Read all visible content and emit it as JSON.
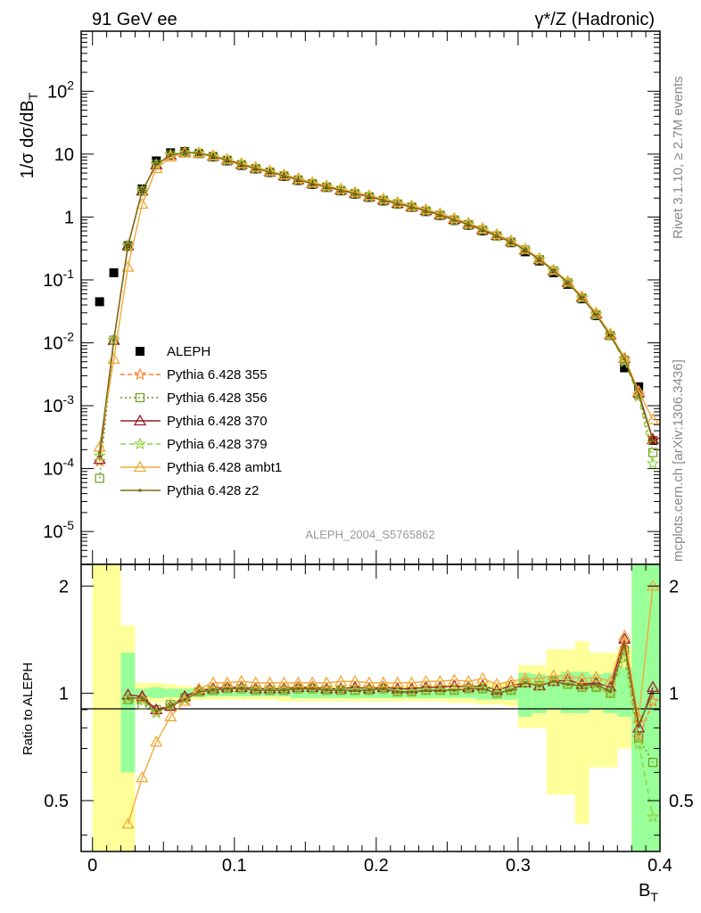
{
  "header": {
    "left": "91 GeV ee",
    "right": "γ*/Z (Hadronic)"
  },
  "side": {
    "rivet": "Rivet 3.1.10, ≥ 2.7M events",
    "mcplots": "mcplots.cern.ch [arXiv:1306.3436]"
  },
  "analysis_tag": "ALEPH_2004_S5765862",
  "chart_data": [
    {
      "type": "scatter",
      "panel": "main",
      "ylabel": "1/σ  dσ/dB_T",
      "yscale": "log",
      "ylim": [
        3e-06,
        900
      ],
      "xlim": [
        -0.008,
        0.4
      ],
      "yticks": [
        "10^-5",
        "10^-4",
        "10^-3",
        "10^-2",
        "10^-1",
        "1",
        "10",
        "10^2"
      ],
      "x": [
        0.005,
        0.015,
        0.025,
        0.035,
        0.045,
        0.055,
        0.065,
        0.075,
        0.085,
        0.095,
        0.105,
        0.115,
        0.125,
        0.135,
        0.145,
        0.155,
        0.165,
        0.175,
        0.185,
        0.195,
        0.205,
        0.215,
        0.225,
        0.235,
        0.245,
        0.255,
        0.265,
        0.275,
        0.285,
        0.295,
        0.305,
        0.315,
        0.325,
        0.335,
        0.345,
        0.355,
        0.365,
        0.375,
        0.385,
        0.395
      ],
      "series": [
        {
          "name": "ALEPH",
          "color": "#000000",
          "marker": "square",
          "values": [
            0.045,
            0.13,
            0.35,
            2.8,
            7.8,
            10.5,
            11,
            10.2,
            9.0,
            7.8,
            6.6,
            5.8,
            5.1,
            4.4,
            3.8,
            3.3,
            2.95,
            2.6,
            2.3,
            2.05,
            1.8,
            1.6,
            1.42,
            1.22,
            1.05,
            0.88,
            0.74,
            0.6,
            0.5,
            0.39,
            0.28,
            0.2,
            0.13,
            0.085,
            0.05,
            0.027,
            0.013,
            0.004,
            0.002,
            0.00028
          ]
        },
        {
          "name": "Pythia 6.428 355",
          "color": "#ff7f2a",
          "marker": "star",
          "dash": "5,3",
          "values": [
            0.00013,
            0.011,
            0.35,
            2.6,
            6.8,
            9.6,
            10.6,
            10.3,
            9.2,
            8.0,
            6.8,
            5.9,
            5.2,
            4.5,
            3.9,
            3.4,
            3.0,
            2.65,
            2.35,
            2.1,
            1.85,
            1.62,
            1.44,
            1.25,
            1.07,
            0.9,
            0.76,
            0.62,
            0.5,
            0.4,
            0.3,
            0.21,
            0.14,
            0.09,
            0.052,
            0.028,
            0.013,
            0.0055,
            0.0015,
            0.0003
          ]
        },
        {
          "name": "Pythia 6.428 356",
          "color": "#6e9c1c",
          "marker": "open-square",
          "dash": "2,3",
          "values": [
            7e-05,
            0.011,
            0.34,
            2.6,
            6.9,
            9.7,
            10.7,
            10.3,
            9.2,
            8.0,
            6.8,
            5.9,
            5.2,
            4.5,
            3.9,
            3.4,
            3.0,
            2.65,
            2.35,
            2.1,
            1.85,
            1.62,
            1.44,
            1.25,
            1.07,
            0.9,
            0.76,
            0.62,
            0.5,
            0.4,
            0.3,
            0.21,
            0.14,
            0.09,
            0.052,
            0.028,
            0.013,
            0.0053,
            0.0015,
            0.00018
          ]
        },
        {
          "name": "Pythia 6.428 370",
          "color": "#9b1c2c",
          "marker": "open-triangle",
          "dash": "",
          "values": [
            0.00014,
            0.011,
            0.35,
            2.6,
            6.8,
            9.6,
            10.7,
            10.4,
            9.3,
            8.1,
            6.9,
            5.95,
            5.25,
            4.55,
            3.95,
            3.45,
            3.05,
            2.7,
            2.4,
            2.12,
            1.88,
            1.65,
            1.46,
            1.27,
            1.09,
            0.92,
            0.77,
            0.63,
            0.51,
            0.41,
            0.3,
            0.21,
            0.14,
            0.092,
            0.053,
            0.029,
            0.0135,
            0.0057,
            0.0016,
            0.00029
          ]
        },
        {
          "name": "Pythia 6.428 379",
          "color": "#8fd13f",
          "marker": "star",
          "dash": "6,4",
          "values": [
            0.00016,
            0.011,
            0.35,
            2.6,
            6.8,
            9.7,
            10.6,
            10.3,
            9.2,
            8.0,
            6.8,
            5.9,
            5.2,
            4.5,
            3.9,
            3.4,
            3.0,
            2.65,
            2.35,
            2.1,
            1.85,
            1.62,
            1.44,
            1.25,
            1.07,
            0.9,
            0.76,
            0.62,
            0.5,
            0.4,
            0.3,
            0.21,
            0.14,
            0.09,
            0.052,
            0.028,
            0.013,
            0.005,
            0.0014,
            0.00012
          ]
        },
        {
          "name": "Pythia 6.428 ambt1",
          "color": "#f2a93b",
          "marker": "open-triangle",
          "dash": "",
          "values": [
            0.00022,
            0.0055,
            0.16,
            1.6,
            5.9,
            9.0,
            10.4,
            10.5,
            9.5,
            8.3,
            7.1,
            6.2,
            5.4,
            4.7,
            4.1,
            3.55,
            3.15,
            2.8,
            2.48,
            2.2,
            1.95,
            1.72,
            1.52,
            1.32,
            1.14,
            0.96,
            0.8,
            0.66,
            0.53,
            0.42,
            0.31,
            0.22,
            0.145,
            0.095,
            0.055,
            0.03,
            0.014,
            0.0058,
            0.0017,
            0.0006
          ]
        },
        {
          "name": "Pythia 6.428 z2",
          "color": "#7a6c14",
          "marker": "dot",
          "dash": "",
          "values": [
            0.00018,
            0.011,
            0.35,
            2.6,
            6.8,
            9.6,
            10.6,
            10.3,
            9.2,
            8.0,
            6.8,
            5.9,
            5.2,
            4.5,
            3.9,
            3.4,
            3.0,
            2.65,
            2.35,
            2.1,
            1.85,
            1.62,
            1.44,
            1.25,
            1.07,
            0.9,
            0.76,
            0.62,
            0.5,
            0.4,
            0.3,
            0.21,
            0.14,
            0.09,
            0.052,
            0.028,
            0.013,
            0.0055,
            0.0015,
            0.00028
          ]
        }
      ]
    },
    {
      "type": "line",
      "panel": "ratio",
      "xlabel": "B_T",
      "ylabel": "Ratio to ALEPH",
      "yscale": "log",
      "ylim": [
        0.36,
        2.3
      ],
      "xlim": [
        -0.008,
        0.4
      ],
      "xticks": [
        "0",
        "0.1",
        "0.2",
        "0.3",
        "0.4"
      ],
      "yticks": [
        "0.5",
        "1",
        "2"
      ],
      "x": [
        0.005,
        0.015,
        0.025,
        0.035,
        0.045,
        0.055,
        0.065,
        0.075,
        0.085,
        0.095,
        0.105,
        0.115,
        0.125,
        0.135,
        0.145,
        0.155,
        0.165,
        0.175,
        0.185,
        0.195,
        0.205,
        0.215,
        0.225,
        0.235,
        0.245,
        0.255,
        0.265,
        0.275,
        0.285,
        0.295,
        0.305,
        0.315,
        0.325,
        0.335,
        0.345,
        0.355,
        0.365,
        0.375,
        0.385,
        0.395
      ],
      "band_inner": [
        2.05,
        2.0,
        0.6,
        0.98,
        0.97,
        0.975,
        0.975,
        0.975,
        0.98,
        0.98,
        0.98,
        0.98,
        0.98,
        0.98,
        0.97,
        0.97,
        0.97,
        0.97,
        0.97,
        0.97,
        0.97,
        0.97,
        0.97,
        0.97,
        0.97,
        0.97,
        0.97,
        0.96,
        0.96,
        0.96,
        0.86,
        0.88,
        0.9,
        0.88,
        0.88,
        0.9,
        0.88,
        0.86,
        0.36,
        0.36
      ],
      "band_inner_hi": [
        2.05,
        2.0,
        1.3,
        1.03,
        1.04,
        1.03,
        1.03,
        1.03,
        1.02,
        1.02,
        1.02,
        1.02,
        1.02,
        1.02,
        1.03,
        1.03,
        1.03,
        1.03,
        1.03,
        1.03,
        1.03,
        1.03,
        1.03,
        1.03,
        1.03,
        1.03,
        1.03,
        1.04,
        1.04,
        1.04,
        1.14,
        1.13,
        1.12,
        1.15,
        1.15,
        1.13,
        1.14,
        1.18,
        2.3,
        2.3
      ],
      "band_outer_lo": [
        0.36,
        0.36,
        0.36,
        0.93,
        0.94,
        0.95,
        0.96,
        0.96,
        0.96,
        0.96,
        0.96,
        0.96,
        0.96,
        0.95,
        0.95,
        0.95,
        0.95,
        0.95,
        0.95,
        0.95,
        0.95,
        0.95,
        0.95,
        0.95,
        0.95,
        0.94,
        0.94,
        0.93,
        0.93,
        0.92,
        0.8,
        0.8,
        0.52,
        0.52,
        0.43,
        0.62,
        0.62,
        0.7,
        0.36,
        0.36
      ],
      "band_outer_hi": [
        2.3,
        2.3,
        1.55,
        1.07,
        1.07,
        1.06,
        1.05,
        1.04,
        1.04,
        1.04,
        1.04,
        1.04,
        1.04,
        1.05,
        1.05,
        1.05,
        1.05,
        1.05,
        1.05,
        1.05,
        1.05,
        1.05,
        1.05,
        1.05,
        1.06,
        1.06,
        1.06,
        1.07,
        1.07,
        1.08,
        1.2,
        1.2,
        1.33,
        1.33,
        1.4,
        1.3,
        1.3,
        1.35,
        2.3,
        2.3
      ],
      "series": [
        {
          "name": "Pythia 6.428 355",
          "color": "#ff7f2a",
          "marker": "star",
          "dash": "5,3",
          "values": [
            null,
            null,
            0.97,
            0.97,
            0.89,
            0.92,
            0.96,
            1.01,
            1.02,
            1.03,
            1.03,
            1.02,
            1.02,
            1.02,
            1.03,
            1.03,
            1.02,
            1.02,
            1.02,
            1.02,
            1.03,
            1.01,
            1.01,
            1.02,
            1.02,
            1.02,
            1.03,
            1.03,
            1.0,
            1.02,
            1.07,
            1.05,
            1.08,
            1.06,
            1.04,
            1.04,
            1.0,
            1.38,
            0.75,
            0.95
          ]
        },
        {
          "name": "Pythia 6.428 356",
          "color": "#6e9c1c",
          "marker": "open-square",
          "dash": "2,3",
          "values": [
            null,
            null,
            0.96,
            0.93,
            0.9,
            0.93,
            0.97,
            1.01,
            1.02,
            1.03,
            1.03,
            1.02,
            1.02,
            1.02,
            1.03,
            1.03,
            1.02,
            1.02,
            1.02,
            1.02,
            1.03,
            1.01,
            1.01,
            1.02,
            1.02,
            1.02,
            1.03,
            1.03,
            1.0,
            1.02,
            1.07,
            1.05,
            1.08,
            1.06,
            1.04,
            1.04,
            1.0,
            1.32,
            0.75,
            0.64
          ]
        },
        {
          "name": "Pythia 6.428 370",
          "color": "#9b1c2c",
          "marker": "open-triangle",
          "dash": "",
          "values": [
            null,
            null,
            0.99,
            0.98,
            0.9,
            0.92,
            0.98,
            1.02,
            1.03,
            1.04,
            1.04,
            1.03,
            1.03,
            1.03,
            1.04,
            1.04,
            1.03,
            1.03,
            1.04,
            1.03,
            1.04,
            1.03,
            1.03,
            1.04,
            1.04,
            1.05,
            1.04,
            1.05,
            1.02,
            1.05,
            1.07,
            1.05,
            1.08,
            1.09,
            1.06,
            1.07,
            1.04,
            1.42,
            0.8,
            1.04
          ]
        },
        {
          "name": "Pythia 6.428 379",
          "color": "#8fd13f",
          "marker": "star",
          "dash": "6,4",
          "values": [
            null,
            null,
            0.97,
            0.96,
            0.88,
            0.93,
            0.96,
            1.01,
            1.02,
            1.03,
            1.03,
            1.02,
            1.02,
            1.02,
            1.03,
            1.03,
            1.02,
            1.02,
            1.02,
            1.02,
            1.03,
            1.01,
            1.01,
            1.02,
            1.02,
            1.02,
            1.03,
            1.03,
            1.0,
            1.02,
            1.07,
            1.05,
            1.08,
            1.06,
            1.04,
            1.04,
            1.0,
            1.25,
            0.72,
            0.45
          ]
        },
        {
          "name": "Pythia 6.428 ambt1",
          "color": "#f2a93b",
          "marker": "open-triangle",
          "dash": "",
          "values": [
            null,
            null,
            0.43,
            0.58,
            0.73,
            0.86,
            0.95,
            1.03,
            1.07,
            1.07,
            1.08,
            1.07,
            1.07,
            1.07,
            1.07,
            1.07,
            1.07,
            1.08,
            1.08,
            1.07,
            1.07,
            1.07,
            1.07,
            1.08,
            1.08,
            1.09,
            1.08,
            1.1,
            1.06,
            1.08,
            1.1,
            1.1,
            1.12,
            1.12,
            1.1,
            1.11,
            1.08,
            1.45,
            0.85,
            2.0
          ]
        },
        {
          "name": "Pythia 6.428 z2",
          "color": "#7a6c14",
          "marker": "dot",
          "dash": "",
          "values": [
            null,
            null,
            0.97,
            0.97,
            0.89,
            0.92,
            0.96,
            1.01,
            1.02,
            1.03,
            1.03,
            1.02,
            1.02,
            1.02,
            1.03,
            1.03,
            1.02,
            1.02,
            1.02,
            1.02,
            1.03,
            1.01,
            1.01,
            1.02,
            1.02,
            1.02,
            1.03,
            1.03,
            1.0,
            1.02,
            1.07,
            1.05,
            1.08,
            1.06,
            1.05,
            1.06,
            1.01,
            1.36,
            0.82,
            1.0
          ]
        }
      ]
    }
  ]
}
